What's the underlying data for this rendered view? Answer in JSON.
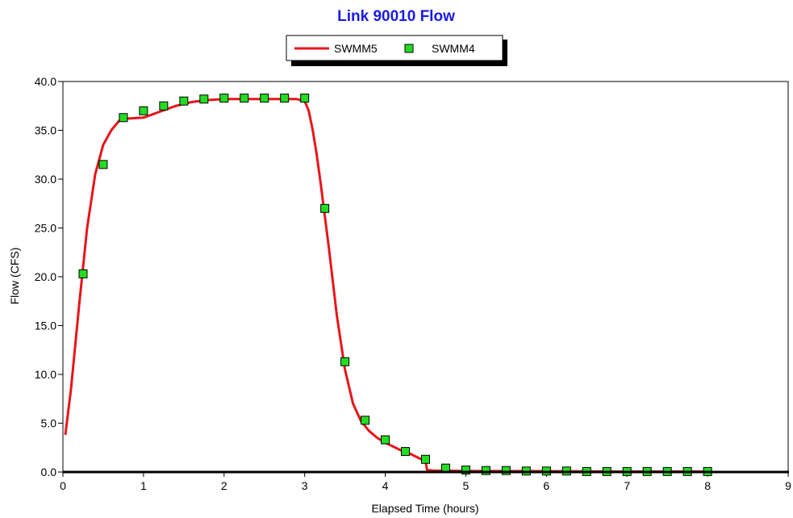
{
  "chart_data": {
    "type": "line",
    "title": "Link 90010 Flow",
    "xlabel": "Elapsed Time (hours)",
    "ylabel": "Flow (CFS)",
    "xlim": [
      0,
      9
    ],
    "ylim": [
      0,
      40
    ],
    "x_ticks": [
      "0",
      "1",
      "2",
      "3",
      "4",
      "5",
      "6",
      "7",
      "8",
      "9"
    ],
    "y_ticks": [
      "0.0",
      "5.0",
      "10.0",
      "15.0",
      "20.0",
      "25.0",
      "30.0",
      "35.0",
      "40.0"
    ],
    "legend_position": "top-center",
    "grid": false,
    "series": [
      {
        "name": "SWMM5",
        "style": "line",
        "color": "#e8141b",
        "x": [
          0.03,
          0.1,
          0.2,
          0.3,
          0.4,
          0.5,
          0.6,
          0.7,
          0.8,
          1.0,
          1.2,
          1.4,
          1.6,
          1.8,
          2.0,
          2.5,
          2.9,
          3.0,
          3.05,
          3.1,
          3.15,
          3.2,
          3.3,
          3.4,
          3.5,
          3.6,
          3.7,
          3.8,
          3.9,
          4.0,
          4.1,
          4.2,
          4.3,
          4.4,
          4.5,
          4.52,
          4.6,
          4.8,
          5.0,
          6.0,
          7.0,
          8.0
        ],
        "y": [
          3.8,
          8.5,
          17.0,
          25.0,
          30.5,
          33.5,
          35.0,
          36.0,
          36.2,
          36.3,
          36.9,
          37.5,
          37.9,
          38.1,
          38.2,
          38.2,
          38.2,
          38.0,
          37.0,
          35.0,
          32.5,
          29.5,
          23.0,
          16.0,
          10.5,
          7.0,
          5.2,
          4.2,
          3.5,
          3.0,
          2.6,
          2.2,
          1.9,
          1.5,
          1.1,
          0.2,
          0.15,
          0.12,
          0.1,
          0.08,
          0.05,
          0.05
        ]
      },
      {
        "name": "SWMM4",
        "style": "marker",
        "color": "#22dd22",
        "x": [
          0.25,
          0.5,
          0.75,
          1.0,
          1.25,
          1.5,
          1.75,
          2.0,
          2.25,
          2.5,
          2.75,
          3.0,
          3.25,
          3.5,
          3.75,
          4.0,
          4.25,
          4.5,
          4.75,
          5.0,
          5.25,
          5.5,
          5.75,
          6.0,
          6.25,
          6.5,
          6.75,
          7.0,
          7.25,
          7.5,
          7.75,
          8.0
        ],
        "y": [
          20.3,
          31.5,
          36.3,
          37.0,
          37.5,
          38.0,
          38.2,
          38.3,
          38.3,
          38.3,
          38.3,
          38.3,
          27.0,
          11.3,
          5.3,
          3.3,
          2.1,
          1.3,
          0.4,
          0.2,
          0.15,
          0.15,
          0.1,
          0.1,
          0.1,
          0.05,
          0.05,
          0.05,
          0.05,
          0.05,
          0.05,
          0.05
        ]
      }
    ]
  },
  "colors": {
    "title": "#1a1ae6",
    "axes": "#000000"
  }
}
